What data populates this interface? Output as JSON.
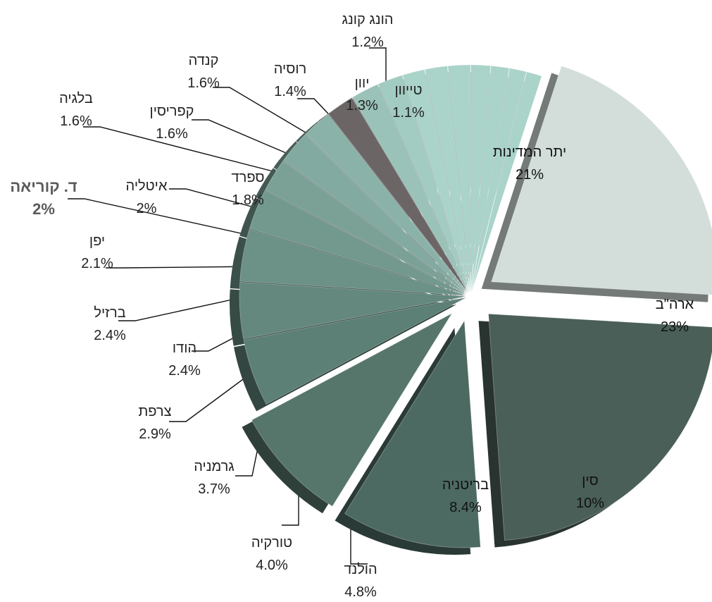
{
  "chart_data": {
    "type": "pie",
    "style": "3d-exploded",
    "highlight_color": "#6b6565",
    "colors": {
      "rest": "#d3dedb",
      "usa": "#4a5f57",
      "china": "#4d6a62",
      "britain": "#56756b",
      "small_slices": "#a7cfc6",
      "korea": "#6b6565"
    },
    "slices": [
      {
        "name": "יתר המדינות",
        "value": 21,
        "label": "21%"
      },
      {
        "name": "ארה\"ב",
        "value": 23,
        "label": "23%"
      },
      {
        "name": "סין",
        "value": 10,
        "label": "10%"
      },
      {
        "name": "בריטניה",
        "value": 8.4,
        "label": "8.4%"
      },
      {
        "name": "הולנד",
        "value": 4.8,
        "label": "4.8%"
      },
      {
        "name": "טורקיה",
        "value": 4.0,
        "label": "4.0%"
      },
      {
        "name": "גרמניה",
        "value": 3.7,
        "label": "3.7%"
      },
      {
        "name": "צרפת",
        "value": 2.9,
        "label": "2.9%"
      },
      {
        "name": "הודו",
        "value": 2.4,
        "label": "2.4%"
      },
      {
        "name": "ברזיל",
        "value": 2.4,
        "label": "2.4%"
      },
      {
        "name": "יפן",
        "value": 2.1,
        "label": "2.1%"
      },
      {
        "name": "ד. קוריאה",
        "value": 2,
        "label": "2%",
        "highlight": true
      },
      {
        "name": "איטליה",
        "value": 2,
        "label": "2%"
      },
      {
        "name": "ספרד",
        "value": 1.8,
        "label": "1.8%"
      },
      {
        "name": "בלגיה",
        "value": 1.6,
        "label": "1.6%"
      },
      {
        "name": "קפריסין",
        "value": 1.6,
        "label": "1.6%"
      },
      {
        "name": "קנדה",
        "value": 1.6,
        "label": "1.6%"
      },
      {
        "name": "רוסיה",
        "value": 1.4,
        "label": "1.4%"
      },
      {
        "name": "יוון",
        "value": 1.3,
        "label": "1.3%"
      },
      {
        "name": "הונג קונג",
        "value": 1.2,
        "label": "1.2%"
      },
      {
        "name": "טייוון",
        "value": 1.1,
        "label": "1.1%"
      }
    ]
  }
}
